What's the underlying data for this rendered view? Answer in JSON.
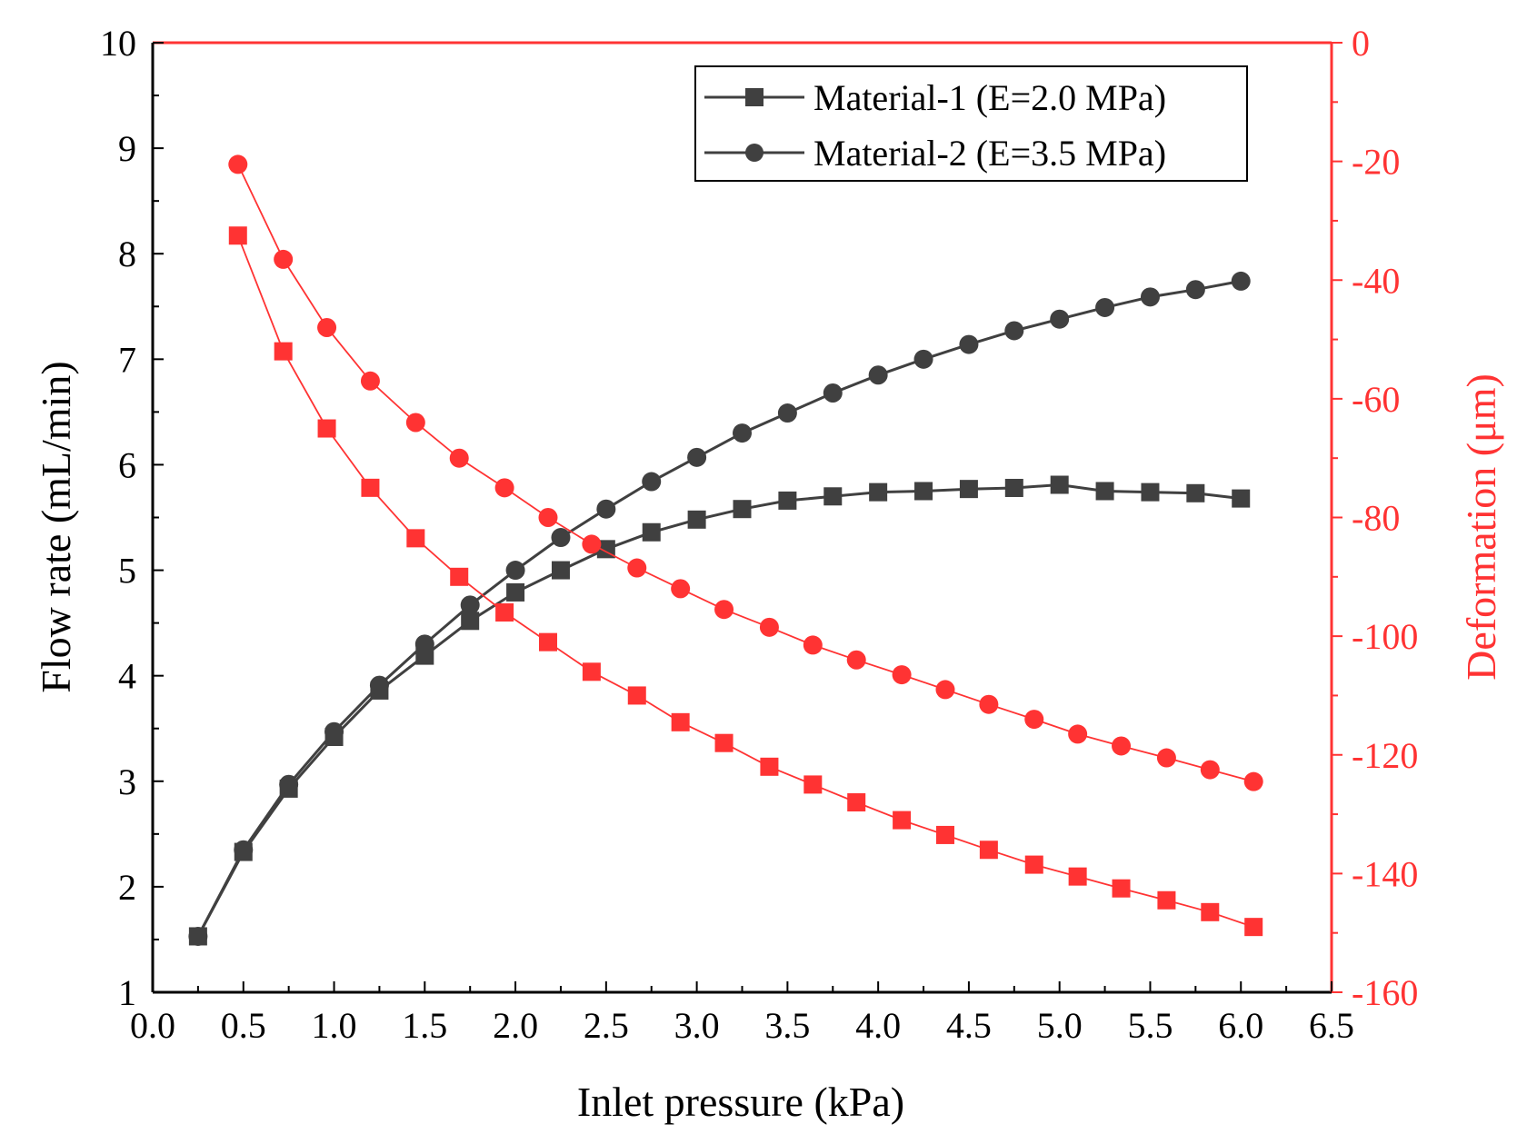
{
  "chart_data": {
    "type": "line",
    "xlabel": "Inlet pressure (kPa)",
    "ylabel_left": "Flow rate (mL/min)",
    "ylabel_right": "Deformation (μm)",
    "xlim": [
      0.0,
      6.5
    ],
    "ylim_left": [
      1,
      10
    ],
    "ylim_right": [
      -160,
      0
    ],
    "x_ticks": [
      "0.0",
      "0.5",
      "1.0",
      "1.5",
      "2.0",
      "2.5",
      "3.0",
      "3.5",
      "4.0",
      "4.5",
      "5.0",
      "5.5",
      "6.0",
      "6.5"
    ],
    "y_left_ticks": [
      "1",
      "2",
      "3",
      "4",
      "5",
      "6",
      "7",
      "8",
      "9",
      "10"
    ],
    "y_right_ticks": [
      "0",
      "-20",
      "-40",
      "-60",
      "-80",
      "-100",
      "-120",
      "-140",
      "-160"
    ],
    "grid": false,
    "legend": {
      "placement": "top-right",
      "entries": [
        {
          "label": "Material-1 (E=2.0 MPa)",
          "marker": "square"
        },
        {
          "label": "Material-2 (E=3.5 MPa)",
          "marker": "circle"
        }
      ]
    },
    "colors": {
      "flow": "#404040",
      "deformation": "#ff3333",
      "right_axis": "#ff3333"
    },
    "series": [
      {
        "name": "Material-1 (E=2.0 MPa)",
        "axis": "left",
        "marker": "square",
        "color": "#404040",
        "x": [
          0.25,
          0.5,
          0.75,
          1.0,
          1.25,
          1.5,
          1.75,
          2.0,
          2.25,
          2.5,
          2.75,
          3.0,
          3.25,
          3.5,
          3.75,
          4.0,
          4.25,
          4.5,
          4.75,
          5.0,
          5.25,
          5.5,
          5.75,
          6.0
        ],
        "y": [
          1.53,
          2.33,
          2.93,
          3.42,
          3.86,
          4.19,
          4.52,
          4.79,
          5.0,
          5.2,
          5.36,
          5.48,
          5.58,
          5.66,
          5.7,
          5.74,
          5.75,
          5.77,
          5.78,
          5.81,
          5.75,
          5.74,
          5.73,
          5.68
        ]
      },
      {
        "name": "Material-2 (E=3.5 MPa)",
        "axis": "left",
        "marker": "circle",
        "color": "#404040",
        "x": [
          0.25,
          0.5,
          0.75,
          1.0,
          1.25,
          1.5,
          1.75,
          2.0,
          2.25,
          2.5,
          2.75,
          3.0,
          3.25,
          3.5,
          3.75,
          4.0,
          4.25,
          4.5,
          4.75,
          5.0,
          5.25,
          5.5,
          5.75,
          6.0
        ],
        "y": [
          1.53,
          2.35,
          2.97,
          3.47,
          3.91,
          4.3,
          4.67,
          5.0,
          5.31,
          5.58,
          5.84,
          6.07,
          6.3,
          6.49,
          6.68,
          6.85,
          7.0,
          7.14,
          7.27,
          7.38,
          7.49,
          7.59,
          7.66,
          7.74
        ]
      },
      {
        "axis": "right",
        "marker": "square",
        "color": "#ff3333",
        "x": [
          0.47,
          0.72,
          0.96,
          1.2,
          1.45,
          1.69,
          1.94,
          2.18,
          2.42,
          2.67,
          2.91,
          3.15,
          3.4,
          3.64,
          3.88,
          4.13,
          4.37,
          4.61,
          4.86,
          5.1,
          5.34,
          5.59,
          5.83,
          6.07
        ],
        "y": [
          -32.5,
          -52,
          -65,
          -75,
          -83.5,
          -90,
          -96,
          -101,
          -106,
          -110,
          -114.5,
          -118,
          -122,
          -125,
          -128,
          -131,
          -133.5,
          -136,
          -138.5,
          -140.5,
          -142.5,
          -144.5,
          -146.5,
          -149
        ]
      },
      {
        "axis": "right",
        "marker": "circle",
        "color": "#ff3333",
        "x": [
          0.47,
          0.72,
          0.96,
          1.2,
          1.45,
          1.69,
          1.94,
          2.18,
          2.42,
          2.67,
          2.91,
          3.15,
          3.4,
          3.64,
          3.88,
          4.13,
          4.37,
          4.61,
          4.86,
          5.1,
          5.34,
          5.59,
          5.83,
          6.07
        ],
        "y": [
          -20.5,
          -36.5,
          -48,
          -57,
          -64,
          -70,
          -75,
          -80,
          -84.5,
          -88.5,
          -92,
          -95.5,
          -98.5,
          -101.5,
          -104,
          -106.5,
          -109,
          -111.5,
          -114,
          -116.5,
          -118.5,
          -120.5,
          -122.5,
          -124.5
        ]
      }
    ]
  }
}
